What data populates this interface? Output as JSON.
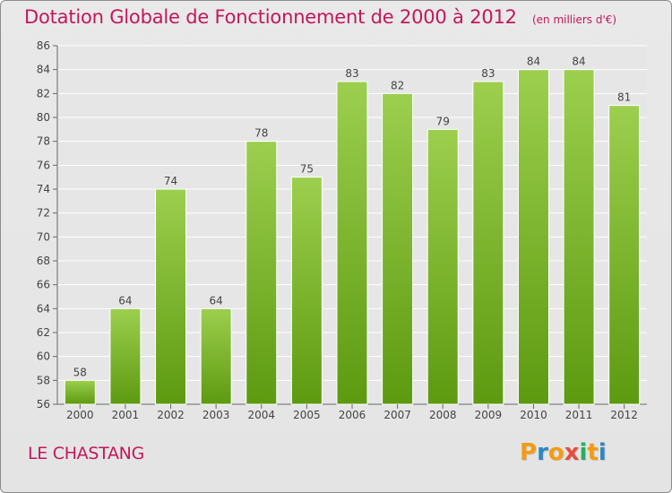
{
  "header": {
    "title": "Dotation Globale de Fonctionnement de 2000 à 2012",
    "unit": "(en milliers d'€)"
  },
  "footer": {
    "commune": "LE CHASTANG",
    "logo": {
      "letters": [
        "P",
        "r",
        "o",
        "x",
        "i",
        "t",
        "i"
      ],
      "colors": [
        "#f39c12",
        "#2e86c1",
        "#f39c12",
        "#e74c3c",
        "#27ae60",
        "#f39c12",
        "#2e86c1"
      ]
    }
  },
  "colors": {
    "bar_light": "#9ccf4e",
    "bar_dark": "#5d9a10",
    "title": "#c2185b"
  },
  "chart_data": {
    "type": "bar",
    "title": "Dotation Globale de Fonctionnement de 2000 à 2012",
    "subtitle": "(en milliers d'€)",
    "categories": [
      "2000",
      "2001",
      "2002",
      "2003",
      "2004",
      "2005",
      "2006",
      "2007",
      "2008",
      "2009",
      "2010",
      "2011",
      "2012"
    ],
    "values": [
      58,
      64,
      74,
      64,
      78,
      75,
      83,
      82,
      79,
      83,
      84,
      84,
      81
    ],
    "ylim": [
      56,
      86
    ],
    "yticks": [
      56,
      58,
      60,
      62,
      64,
      66,
      68,
      70,
      72,
      74,
      76,
      78,
      80,
      82,
      84,
      86
    ],
    "grid": true,
    "xlabel": "",
    "ylabel": ""
  }
}
